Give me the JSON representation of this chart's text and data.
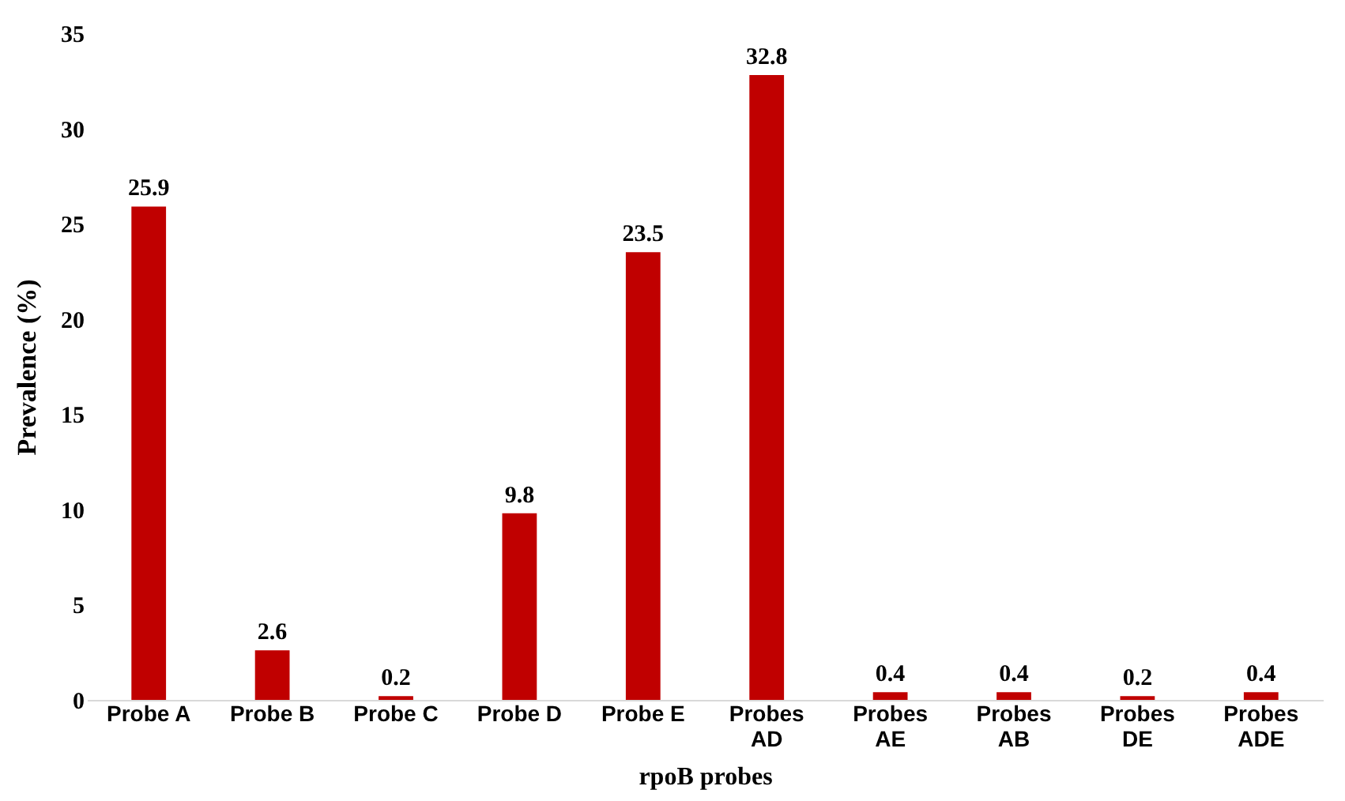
{
  "chart_data": {
    "type": "bar",
    "xlabel": "rpoB probes",
    "ylabel": "Prevalence (%)",
    "categories": [
      "Probe A",
      "Probe B",
      "Probe C",
      "Probe D",
      "Probe E",
      "Probes\nAD",
      "Probes\nAE",
      "Probes\nAB",
      "Probes\nDE",
      "Probes\nADE"
    ],
    "values": [
      25.9,
      2.6,
      0.2,
      9.8,
      23.5,
      32.8,
      0.4,
      0.4,
      0.2,
      0.4
    ],
    "color": "#c00000",
    "ylim": [
      0,
      35
    ],
    "yticks": [
      0,
      5,
      10,
      15,
      20,
      25,
      30,
      35
    ],
    "grid": false,
    "data_labels": true
  }
}
